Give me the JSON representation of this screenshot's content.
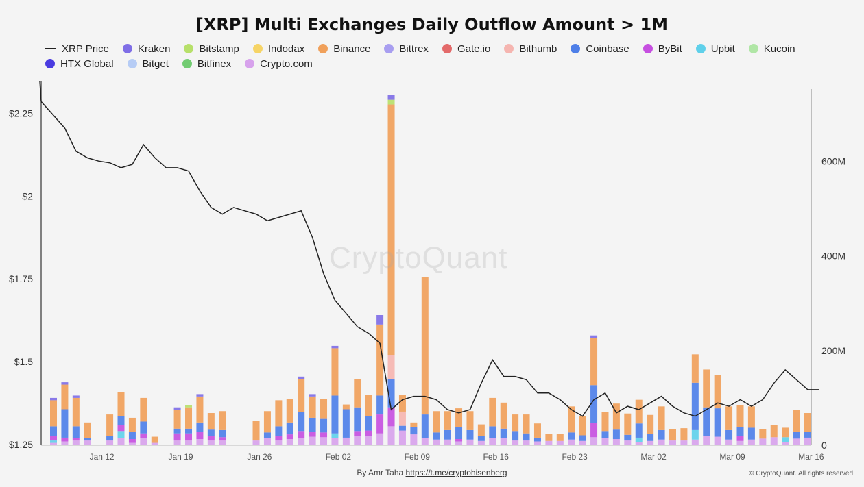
{
  "title": "[XRP] Multi Exchanges Daily Outflow Amount > 1M",
  "footer": {
    "author_text": "By Amr Taha",
    "author_link": "https://t.me/cryptohisenberg",
    "copyright": "© CryptoQuant. All rights reserved"
  },
  "watermark": "CryptoQuant",
  "legend": {
    "row1": [
      {
        "name": "XRP Price",
        "kind": "line",
        "color": "#222222"
      },
      {
        "name": "Kraken",
        "kind": "dot",
        "color": "#7f6ee6"
      },
      {
        "name": "Bitstamp",
        "kind": "dot",
        "color": "#b7e06a"
      },
      {
        "name": "Indodax",
        "kind": "dot",
        "color": "#f6d466"
      },
      {
        "name": "Binance",
        "kind": "dot",
        "color": "#f0a05a"
      },
      {
        "name": "Bittrex",
        "kind": "dot",
        "color": "#a89ef0"
      },
      {
        "name": "Gate.io",
        "kind": "dot",
        "color": "#e36a6a"
      },
      {
        "name": "Bithumb",
        "kind": "dot",
        "color": "#f5b5b0"
      },
      {
        "name": "Coinbase",
        "kind": "dot",
        "color": "#4e7fe8"
      },
      {
        "name": "ByBit",
        "kind": "dot",
        "color": "#c64fe0"
      },
      {
        "name": "Upbit",
        "kind": "dot",
        "color": "#5fd0ea"
      },
      {
        "name": "Kucoin",
        "kind": "dot",
        "color": "#b0e6a6"
      }
    ],
    "row2": [
      {
        "name": "HTX Global",
        "kind": "dot",
        "color": "#4a3be0"
      },
      {
        "name": "Bitget",
        "kind": "dot",
        "color": "#b6ccf5"
      },
      {
        "name": "Bitfinex",
        "kind": "dot",
        "color": "#72cc72"
      },
      {
        "name": "Crypto.com",
        "kind": "dot",
        "color": "#d7a2ec"
      }
    ]
  },
  "chart_data": {
    "type": "bar",
    "stacked": true,
    "x_start": "2025-01-07",
    "x_tick_labels": [
      "Jan 12",
      "Jan 19",
      "Jan 26",
      "Feb 02",
      "Feb 09",
      "Feb 16",
      "Feb 23",
      "Mar 02",
      "Mar 09",
      "Mar 16"
    ],
    "y_left": {
      "label": "",
      "ticks": [
        "$1.25",
        "$1.5",
        "$1.75",
        "$2",
        "$2.25"
      ],
      "range": [
        1.25,
        2.35
      ]
    },
    "y_right": {
      "label": "",
      "ticks": [
        "0",
        "200M",
        "400M",
        "600M"
      ],
      "range": [
        0,
        770
      ]
    },
    "unit_right": "M",
    "series_colors": {
      "Binance": "#f0a05a",
      "Coinbase": "#4e7fe8",
      "ByBit": "#c64fe0",
      "Upbit": "#5fd0ea",
      "Crypto.com": "#d7a2ec",
      "Kraken": "#7f6ee6",
      "Bitstamp": "#b7e06a",
      "Bithumb": "#f5b5b0",
      "Bitget": "#b6ccf5"
    },
    "bar_totals_M": [
      100,
      133,
      105,
      48,
      0,
      65,
      112,
      58,
      100,
      18,
      0,
      80,
      85,
      108,
      68,
      72,
      0,
      0,
      52,
      72,
      95,
      98,
      145,
      108,
      97,
      210,
      86,
      140,
      106,
      275,
      740,
      106,
      48,
      355,
      72,
      72,
      78,
      72,
      44,
      100,
      90,
      65,
      65,
      46,
      24,
      24,
      82,
      61,
      232,
      70,
      88,
      67,
      96,
      64,
      82,
      34,
      36,
      192,
      160,
      148,
      82,
      84,
      82,
      34,
      42,
      37,
      74,
      68
    ],
    "bars": [
      {
        "Binance": 55,
        "Coinbase": 20,
        "ByBit": 10,
        "Upbit": 5,
        "Crypto.com": 5,
        "Kraken": 5
      },
      {
        "Binance": 52,
        "Coinbase": 60,
        "ByBit": 8,
        "Crypto.com": 8,
        "Kraken": 5
      },
      {
        "Binance": 60,
        "Coinbase": 25,
        "ByBit": 5,
        "Crypto.com": 10,
        "Kraken": 5
      },
      {
        "Binance": 33,
        "Coinbase": 5,
        "Crypto.com": 10
      },
      {},
      {
        "Binance": 45,
        "Coinbase": 10,
        "Crypto.com": 10
      },
      {
        "Binance": 50,
        "Coinbase": 20,
        "Upbit": 15,
        "ByBit": 12,
        "Crypto.com": 15
      },
      {
        "Binance": 30,
        "Coinbase": 15,
        "ByBit": 8,
        "Crypto.com": 5
      },
      {
        "Binance": 50,
        "Coinbase": 25,
        "ByBit": 10,
        "Crypto.com": 15
      },
      {
        "Binance": 13,
        "Crypto.com": 5
      },
      {},
      {
        "Binance": 40,
        "Coinbase": 10,
        "ByBit": 15,
        "Crypto.com": 10,
        "Kraken": 5
      },
      {
        "Binance": 45,
        "Coinbase": 10,
        "ByBit": 15,
        "Crypto.com": 10,
        "Bitstamp": 5
      },
      {
        "Binance": 55,
        "Coinbase": 20,
        "ByBit": 15,
        "Crypto.com": 13,
        "Kraken": 5
      },
      {
        "Binance": 35,
        "Coinbase": 13,
        "ByBit": 10,
        "Crypto.com": 10
      },
      {
        "Binance": 40,
        "Coinbase": 15,
        "ByBit": 7,
        "Crypto.com": 10
      },
      {},
      {},
      {
        "Binance": 42,
        "Crypto.com": 10
      },
      {
        "Binance": 45,
        "Coinbase": 12,
        "Crypto.com": 15
      },
      {
        "Binance": 55,
        "Coinbase": 20,
        "ByBit": 10,
        "Crypto.com": 10
      },
      {
        "Binance": 50,
        "Coinbase": 25,
        "ByBit": 10,
        "Crypto.com": 13
      },
      {
        "Binance": 70,
        "Coinbase": 40,
        "ByBit": 15,
        "Crypto.com": 15,
        "Kraken": 5
      },
      {
        "Binance": 45,
        "Coinbase": 30,
        "ByBit": 10,
        "Crypto.com": 18,
        "Kraken": 5
      },
      {
        "Binance": 40,
        "Coinbase": 30,
        "ByBit": 10,
        "Crypto.com": 17
      },
      {
        "Binance": 100,
        "Coinbase": 80,
        "Upbit": 10,
        "Crypto.com": 15,
        "Kraken": 5
      },
      {
        "Binance": 10,
        "Coinbase": 60,
        "Crypto.com": 16
      },
      {
        "Binance": 60,
        "Coinbase": 50,
        "ByBit": 10,
        "Crypto.com": 20
      },
      {
        "Binance": 45,
        "Coinbase": 30,
        "ByBit": 12,
        "Crypto.com": 19
      },
      {
        "Binance": 150,
        "Coinbase": 40,
        "ByBit": 40,
        "Crypto.com": 25,
        "Kraken": 20
      },
      {
        "Binance": 530,
        "Bithumb": 50,
        "Coinbase": 60,
        "ByBit": 40,
        "Crypto.com": 40,
        "Bitstamp": 10,
        "Kraken": 10
      },
      {
        "Binance": 35,
        "Bithumb": 30,
        "Coinbase": 10,
        "Crypto.com": 31
      },
      {
        "Binance": 10,
        "Coinbase": 15,
        "Crypto.com": 23
      },
      {
        "Binance": 290,
        "Coinbase": 50,
        "Crypto.com": 15
      },
      {
        "Binance": 45,
        "Coinbase": 15,
        "Crypto.com": 12
      },
      {
        "Binance": 40,
        "Coinbase": 20,
        "Crypto.com": 12
      },
      {
        "Binance": 40,
        "Coinbase": 25,
        "ByBit": 5,
        "Crypto.com": 8
      },
      {
        "Binance": 40,
        "Coinbase": 20,
        "Crypto.com": 12
      },
      {
        "Binance": 25,
        "Coinbase": 10,
        "Crypto.com": 9
      },
      {
        "Binance": 60,
        "Coinbase": 25,
        "Crypto.com": 15
      },
      {
        "Binance": 55,
        "Coinbase": 20,
        "Crypto.com": 15
      },
      {
        "Binance": 35,
        "Coinbase": 20,
        "Crypto.com": 10
      },
      {
        "Binance": 40,
        "Coinbase": 15,
        "Crypto.com": 10
      },
      {
        "Binance": 30,
        "Coinbase": 8,
        "Crypto.com": 8
      },
      {
        "Binance": 15,
        "Crypto.com": 9
      },
      {
        "Binance": 15,
        "Crypto.com": 9
      },
      {
        "Binance": 55,
        "Coinbase": 15,
        "Crypto.com": 12
      },
      {
        "Binance": 40,
        "Coinbase": 12,
        "Crypto.com": 9
      },
      {
        "Binance": 100,
        "Coinbase": 80,
        "ByBit": 30,
        "Crypto.com": 17,
        "Kraken": 5
      },
      {
        "Binance": 40,
        "Coinbase": 15,
        "Crypto.com": 15
      },
      {
        "Binance": 55,
        "Coinbase": 20,
        "Crypto.com": 13
      },
      {
        "Binance": 45,
        "Coinbase": 12,
        "Crypto.com": 10
      },
      {
        "Binance": 50,
        "Coinbase": 30,
        "Upbit": 10,
        "Crypto.com": 6
      },
      {
        "Binance": 40,
        "Coinbase": 15,
        "Crypto.com": 9
      },
      {
        "Binance": 50,
        "Coinbase": 20,
        "Crypto.com": 12
      },
      {
        "Binance": 24,
        "Crypto.com": 10
      },
      {
        "Binance": 26,
        "Crypto.com": 10
      },
      {
        "Binance": 60,
        "Coinbase": 100,
        "Upbit": 20,
        "Crypto.com": 12
      },
      {
        "Binance": 80,
        "Coinbase": 60,
        "Crypto.com": 20
      },
      {
        "Binance": 70,
        "Coinbase": 60,
        "Crypto.com": 18
      },
      {
        "Binance": 50,
        "Coinbase": 20,
        "Crypto.com": 12
      },
      {
        "Binance": 45,
        "Coinbase": 20,
        "ByBit": 10,
        "Crypto.com": 9
      },
      {
        "Binance": 45,
        "Coinbase": 25,
        "Crypto.com": 12
      },
      {
        "Binance": 20,
        "Crypto.com": 14
      },
      {
        "Binance": 25,
        "Crypto.com": 17
      },
      {
        "Binance": 20,
        "Upbit": 10,
        "Crypto.com": 7
      },
      {
        "Binance": 45,
        "Coinbase": 15,
        "Crypto.com": 14
      },
      {
        "Binance": 40,
        "Coinbase": 12,
        "Crypto.com": 16
      }
    ],
    "price_series": [
      2.3,
      2.22,
      2.15,
      2.13,
      2.12,
      2.115,
      2.1,
      2.11,
      2.17,
      2.13,
      2.1,
      2.1,
      2.09,
      2.03,
      1.98,
      1.96,
      1.98,
      1.97,
      1.96,
      1.94,
      1.95,
      1.96,
      1.97,
      1.89,
      1.78,
      1.7,
      1.66,
      1.62,
      1.6,
      1.57,
      1.37,
      1.4,
      1.41,
      1.41,
      1.4,
      1.37,
      1.36,
      1.37,
      1.45,
      1.52,
      1.47,
      1.47,
      1.46,
      1.42,
      1.42,
      1.4,
      1.37,
      1.35,
      1.4,
      1.42,
      1.36,
      1.38,
      1.37,
      1.39,
      1.41,
      1.38,
      1.36,
      1.35,
      1.37,
      1.39,
      1.38,
      1.4,
      1.38,
      1.4,
      1.45,
      1.49,
      1.46,
      1.43,
      1.43
    ]
  }
}
